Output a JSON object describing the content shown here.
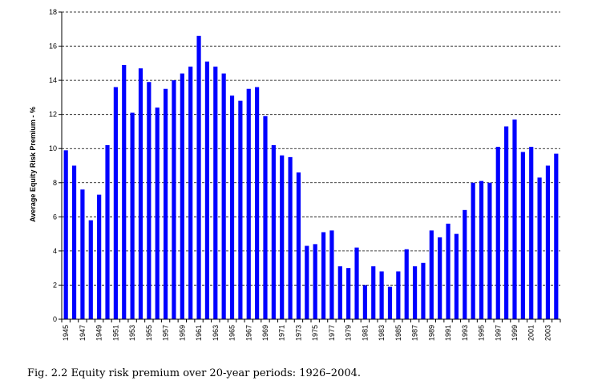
{
  "caption": "Fig. 2.2  Equity risk premium over 20-year periods: 1926–2004.",
  "chart_data": {
    "type": "bar",
    "title": "",
    "xlabel": "",
    "ylabel": "Average Equity Risk Premium - %",
    "ylim": [
      0,
      18
    ],
    "yticks": [
      0,
      2,
      4,
      6,
      8,
      10,
      12,
      14,
      16,
      18
    ],
    "grid": true,
    "bar_color": "#0000ff",
    "categories": [
      "1945",
      "1946",
      "1947",
      "1948",
      "1949",
      "1950",
      "1951",
      "1952",
      "1953",
      "1954",
      "1955",
      "1956",
      "1957",
      "1958",
      "1959",
      "1960",
      "1961",
      "1962",
      "1963",
      "1964",
      "1965",
      "1966",
      "1967",
      "1968",
      "1969",
      "1970",
      "1971",
      "1972",
      "1973",
      "1974",
      "1975",
      "1976",
      "1977",
      "1978",
      "1979",
      "1980",
      "1981",
      "1982",
      "1983",
      "1984",
      "1985",
      "1986",
      "1987",
      "1988",
      "1989",
      "1990",
      "1991",
      "1992",
      "1993",
      "1994",
      "1995",
      "1996",
      "1997",
      "1998",
      "1999",
      "2000",
      "2001",
      "2002",
      "2003",
      "2004"
    ],
    "tick_labels": [
      "1945",
      "1947",
      "1949",
      "1951",
      "1953",
      "1955",
      "1957",
      "1959",
      "1961",
      "1963",
      "1965",
      "1967",
      "1969",
      "1971",
      "1973",
      "1975",
      "1977",
      "1979",
      "1981",
      "1983",
      "1985",
      "1987",
      "1989",
      "1991",
      "1993",
      "1995",
      "1997",
      "1999",
      "2001",
      "2003"
    ],
    "values": [
      9.9,
      9.0,
      7.6,
      5.8,
      7.3,
      10.2,
      13.6,
      14.9,
      12.1,
      14.7,
      13.9,
      12.4,
      13.5,
      14.0,
      14.4,
      14.8,
      16.6,
      15.1,
      14.8,
      14.4,
      13.1,
      12.8,
      13.5,
      13.6,
      11.9,
      10.2,
      9.6,
      9.5,
      8.6,
      4.3,
      4.4,
      5.1,
      5.2,
      3.1,
      3.0,
      4.2,
      2.0,
      3.1,
      2.8,
      1.9,
      2.8,
      4.1,
      3.1,
      3.3,
      5.2,
      4.8,
      5.6,
      5.0,
      6.4,
      8.0,
      8.1,
      8.0,
      10.1,
      11.3,
      11.7,
      9.8,
      10.1,
      8.3,
      9.0,
      9.7
    ]
  }
}
